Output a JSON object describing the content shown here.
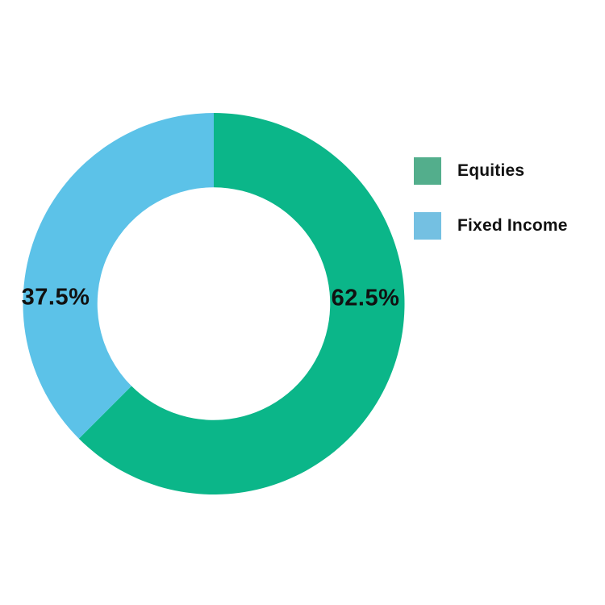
{
  "chart_data": {
    "type": "pie",
    "subtype": "donut",
    "categories": [
      "Equities",
      "Fixed Income"
    ],
    "values": [
      62.5,
      37.5
    ],
    "slice_labels": [
      "62.5%",
      "37.5%"
    ],
    "slice_colors": [
      "#0bb689",
      "#5cc2e8"
    ],
    "legend_swatch_colors": [
      "#53ae8c",
      "#74c0e2"
    ],
    "label_color": "#111111",
    "background_color": "#ffffff",
    "start_angle_deg": 0,
    "direction": "clockwise",
    "hole_ratio": 0.61,
    "legend_position": "right"
  },
  "legend": {
    "items": [
      {
        "label": "Equities"
      },
      {
        "label": "Fixed Income"
      }
    ]
  }
}
